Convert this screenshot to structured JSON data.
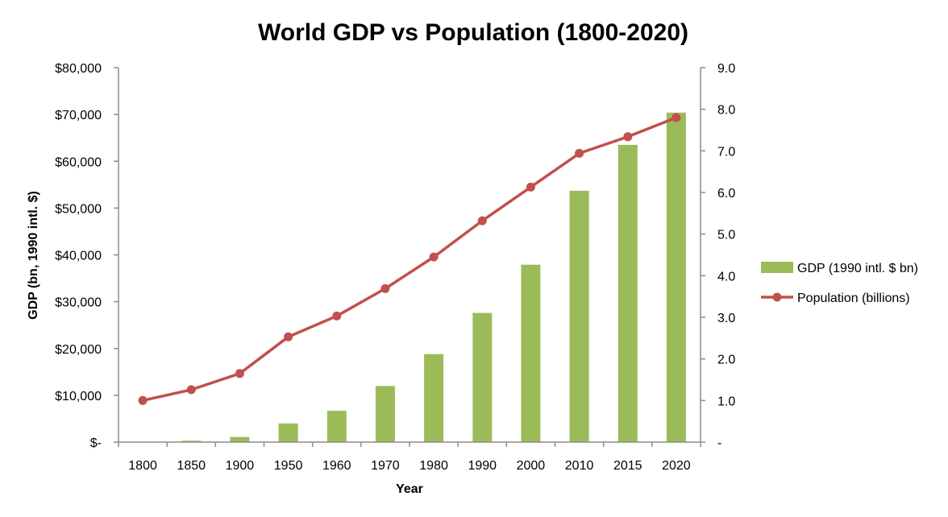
{
  "chart_data": {
    "type": "bar+line",
    "title": "World GDP vs Population (1800-2020)",
    "xlabel": "Year",
    "ylabel": "GDP (bn, 1990 intl. $)",
    "y2label": "",
    "categories": [
      "1800",
      "1850",
      "1900",
      "1950",
      "1960",
      "1970",
      "1980",
      "1990",
      "2000",
      "2010",
      "2015",
      "2020"
    ],
    "ylim": [
      0,
      80000
    ],
    "y2lim": [
      0,
      9
    ],
    "y_ticks": [
      "$-",
      "$10,000",
      "$20,000",
      "$30,000",
      "$40,000",
      "$50,000",
      "$60,000",
      "$70,000",
      "$80,000"
    ],
    "y2_ticks": [
      "-",
      "1.0",
      "2.0",
      "3.0",
      "4.0",
      "5.0",
      "6.0",
      "7.0",
      "8.0",
      "9.0"
    ],
    "series": [
      {
        "name": "GDP (1990 intl. $ bn)",
        "kind": "bar",
        "axis": "left",
        "color": "#9bbb59",
        "values": [
          0,
          300,
          1100,
          4000,
          6700,
          12000,
          18800,
          27600,
          37900,
          53700,
          63500,
          70400
        ]
      },
      {
        "name": "Population (billions)",
        "kind": "line",
        "axis": "right",
        "color": "#c0504d",
        "values": [
          1.0,
          1.26,
          1.65,
          2.53,
          3.03,
          3.69,
          4.45,
          5.32,
          6.13,
          6.94,
          7.34,
          7.8
        ]
      }
    ],
    "legend": {
      "position": "right"
    }
  }
}
